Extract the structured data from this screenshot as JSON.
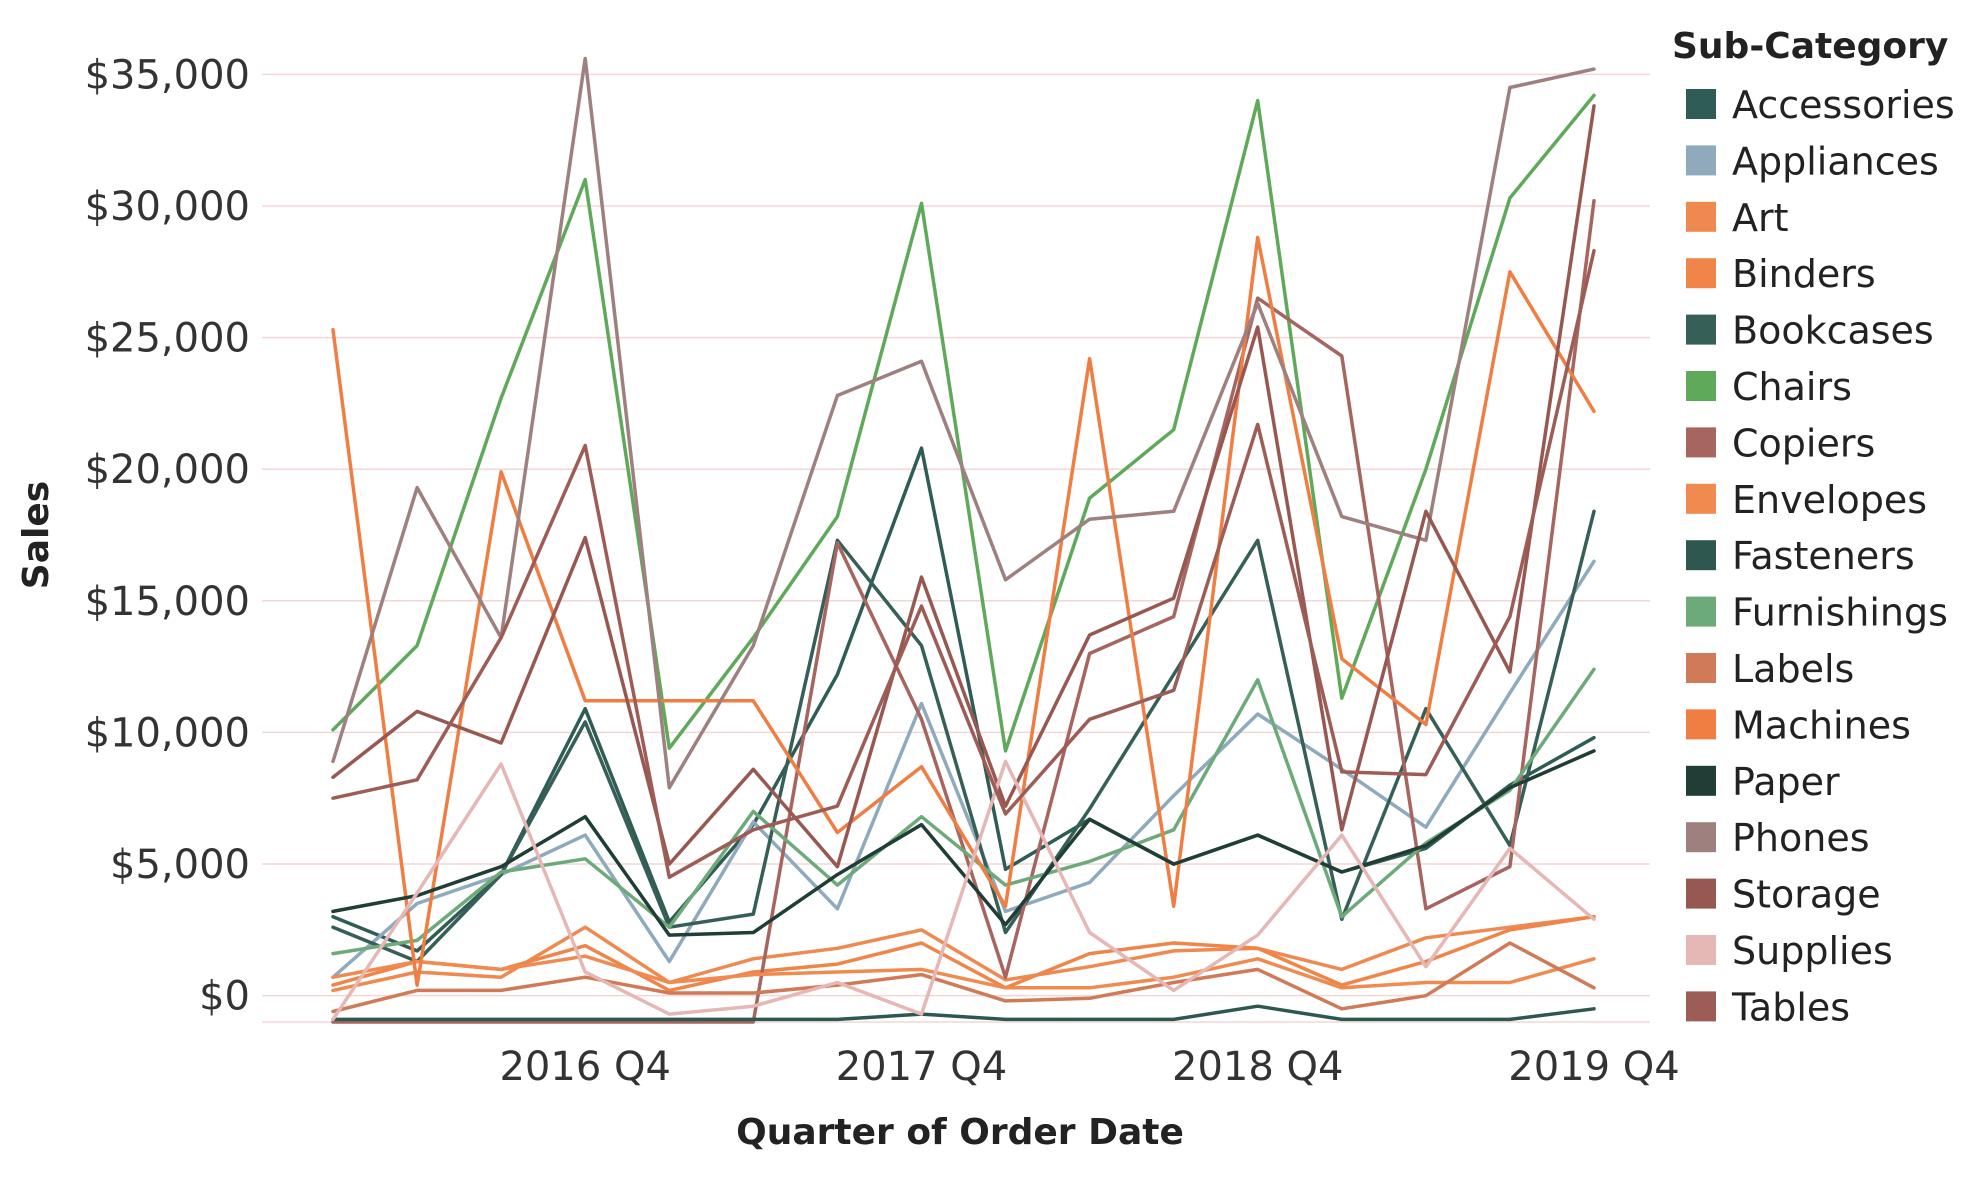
{
  "chart_data": {
    "type": "line",
    "title": "",
    "xlabel": "Quarter of Order Date",
    "ylabel": "Sales",
    "y_format": "currency",
    "ylim": [
      -1000,
      36000
    ],
    "y_ticks": [
      0,
      5000,
      10000,
      15000,
      20000,
      25000,
      30000,
      35000
    ],
    "y_tick_labels": [
      "$0",
      "$5,000",
      "$10,000",
      "$15,000",
      "$20,000",
      "$25,000",
      "$30,000",
      "$35,000"
    ],
    "x": [
      "2016 Q1",
      "2016 Q2",
      "2016 Q3",
      "2016 Q4",
      "2017 Q1",
      "2017 Q2",
      "2017 Q3",
      "2017 Q4",
      "2018 Q1",
      "2018 Q2",
      "2018 Q3",
      "2018 Q4",
      "2019 Q1",
      "2019 Q2",
      "2019 Q3",
      "2019 Q4"
    ],
    "x_tick_labels": [
      {
        "index": 3,
        "label": "2016 Q4"
      },
      {
        "index": 7,
        "label": "2017 Q4"
      },
      {
        "index": 11,
        "label": "2018 Q4"
      },
      {
        "index": 15,
        "label": "2019 Q4"
      }
    ],
    "grid": "horizontal",
    "legend_title": "Sub-Category",
    "legend_position": "right",
    "series": [
      {
        "name": "Accessories",
        "color": "#2f5d56",
        "values": [
          3000,
          1700,
          4600,
          10900,
          2800,
          6500,
          12200,
          20800,
          4800,
          6700,
          5000,
          6100,
          4700,
          5600,
          8000,
          9800
        ]
      },
      {
        "name": "Appliances",
        "color": "#8fa9bd",
        "values": [
          700,
          3500,
          4600,
          6100,
          1300,
          6600,
          3300,
          11100,
          3200,
          4300,
          7600,
          10700,
          8600,
          6400,
          11500,
          16500
        ]
      },
      {
        "name": "Art",
        "color": "#f0894f",
        "values": [
          200,
          900,
          700,
          2600,
          500,
          1400,
          1800,
          2500,
          600,
          1100,
          1700,
          1800,
          1000,
          2200,
          2600,
          3000
        ]
      },
      {
        "name": "Binders",
        "color": "#ef8549",
        "values": [
          400,
          1300,
          1000,
          1900,
          200,
          900,
          1200,
          2000,
          300,
          1600,
          2000,
          1800,
          400,
          1300,
          2500,
          3000
        ]
      },
      {
        "name": "Bookcases",
        "color": "#365f57",
        "values": [
          2600,
          1300,
          4600,
          10400,
          2600,
          3100,
          17300,
          13300,
          2400,
          7100,
          12200,
          17300,
          2900,
          10900,
          5700,
          18400
        ]
      },
      {
        "name": "Chairs",
        "color": "#5fa95b",
        "values": [
          10100,
          13300,
          22700,
          31000,
          9400,
          13600,
          18200,
          30100,
          9300,
          18900,
          21500,
          34000,
          11300,
          20000,
          30300,
          34200
        ]
      },
      {
        "name": "Copiers",
        "color": "#a6655f",
        "values": [
          -1000,
          -1000,
          -1000,
          -1000,
          -1000,
          -1000,
          17200,
          10500,
          700,
          13000,
          14400,
          26500,
          24300,
          3300,
          4900,
          30200
        ]
      },
      {
        "name": "Envelopes",
        "color": "#f08a4f",
        "values": [
          700,
          1300,
          1000,
          1500,
          500,
          800,
          900,
          1000,
          300,
          300,
          700,
          1400,
          300,
          500,
          500,
          1400
        ]
      },
      {
        "name": "Fasteners",
        "color": "#2d574f",
        "values": [
          -900,
          -900,
          -900,
          -900,
          -900,
          -900,
          -900,
          -700,
          -900,
          -900,
          -900,
          -400,
          -900,
          -900,
          -900,
          -500
        ]
      },
      {
        "name": "Furnishings",
        "color": "#6daa7a",
        "values": [
          1600,
          2100,
          4700,
          5200,
          2600,
          7000,
          4200,
          6800,
          4200,
          5100,
          6300,
          12000,
          3000,
          5800,
          7800,
          12400
        ]
      },
      {
        "name": "Labels",
        "color": "#d07a57",
        "values": [
          -600,
          200,
          200,
          700,
          100,
          100,
          400,
          800,
          -200,
          -100,
          500,
          1000,
          -500,
          0,
          2000,
          300
        ]
      },
      {
        "name": "Machines",
        "color": "#f07e43",
        "values": [
          25300,
          400,
          19900,
          11200,
          11200,
          11200,
          6200,
          8700,
          3400,
          24200,
          3400,
          28800,
          12800,
          10300,
          27500,
          22200
        ]
      },
      {
        "name": "Paper",
        "color": "#203d36",
        "values": [
          3200,
          3800,
          4900,
          6800,
          2300,
          2400,
          4600,
          6500,
          2700,
          6700,
          5000,
          6100,
          4700,
          5700,
          7900,
          9300
        ]
      },
      {
        "name": "Phones",
        "color": "#9e807f",
        "values": [
          8900,
          19300,
          13600,
          35600,
          7900,
          13300,
          22800,
          24100,
          15800,
          18100,
          18400,
          26300,
          18200,
          17300,
          34500,
          35200
        ]
      },
      {
        "name": "Storage",
        "color": "#985852",
        "values": [
          8300,
          10800,
          9600,
          17400,
          5000,
          8600,
          4900,
          15900,
          7200,
          13700,
          15100,
          25400,
          6300,
          18400,
          12300,
          33800
        ]
      },
      {
        "name": "Supplies",
        "color": "#e5b7b5",
        "values": [
          -900,
          3900,
          8800,
          900,
          -700,
          -400,
          500,
          -700,
          8900,
          2400,
          200,
          2300,
          6100,
          1100,
          5600,
          2900
        ]
      },
      {
        "name": "Tables",
        "color": "#9d5c55",
        "values": [
          7500,
          8200,
          13600,
          20900,
          4500,
          6300,
          7200,
          14800,
          6900,
          10500,
          11600,
          21700,
          8500,
          8400,
          14400,
          28300
        ]
      }
    ]
  }
}
